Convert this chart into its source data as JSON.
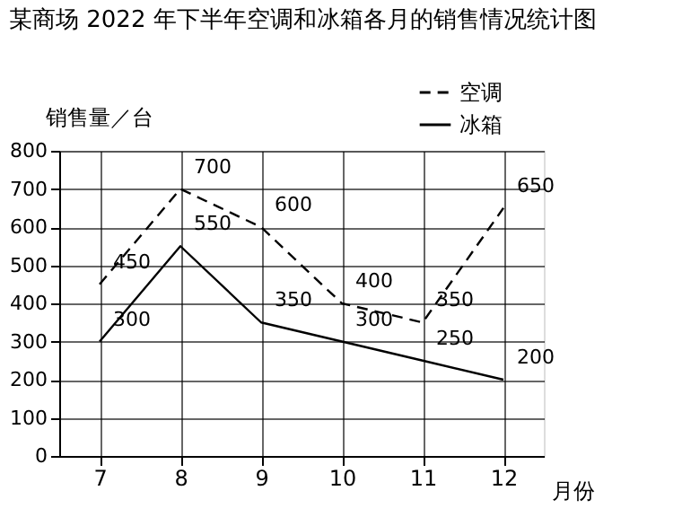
{
  "chart_data": {
    "type": "line",
    "title": "某商场 2022 年下半年空调和冰箱各月的销售情况统计图",
    "ylabel": "销售量／台",
    "xlabel": "月份",
    "categories": [
      "7",
      "8",
      "9",
      "10",
      "11",
      "12"
    ],
    "series": [
      {
        "name": "空调",
        "color": "#000000",
        "line_style": "dashed",
        "values": [
          450,
          700,
          600,
          400,
          350,
          650
        ]
      },
      {
        "name": "冰箱",
        "color": "#000000",
        "line_style": "solid",
        "values": [
          300,
          550,
          350,
          300,
          250,
          200
        ]
      }
    ],
    "ylim": [
      0,
      800
    ],
    "yticks": [
      0,
      100,
      200,
      300,
      400,
      500,
      600,
      700,
      800
    ],
    "grid": true,
    "legend": "top right",
    "data_labels": true
  }
}
